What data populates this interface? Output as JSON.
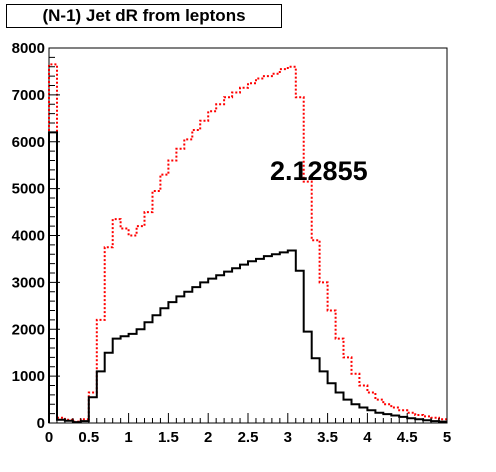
{
  "chart_data": {
    "type": "line",
    "title": "(N-1) Jet dR from leptons",
    "annotation": "2.12855",
    "xlim": [
      0,
      5
    ],
    "ylim": [
      0,
      8000
    ],
    "grid": false,
    "x_ticks": [
      "0",
      "0.5",
      "1",
      "1.5",
      "2",
      "2.5",
      "3",
      "3.5",
      "4",
      "4.5",
      "5"
    ],
    "y_ticks": [
      "0",
      "1000",
      "2000",
      "3000",
      "4000",
      "5000",
      "6000",
      "7000",
      "8000"
    ],
    "bin_width": 0.1,
    "bin_low_edges": [
      0,
      0.1,
      0.2,
      0.3,
      0.4,
      0.5,
      0.6,
      0.7,
      0.8,
      0.9,
      1.0,
      1.1,
      1.2,
      1.3,
      1.4,
      1.5,
      1.6,
      1.7,
      1.8,
      1.9,
      2.0,
      2.1,
      2.2,
      2.3,
      2.4,
      2.5,
      2.6,
      2.7,
      2.8,
      2.9,
      3.0,
      3.1,
      3.2,
      3.3,
      3.4,
      3.5,
      3.6,
      3.7,
      3.8,
      3.9,
      4.0,
      4.1,
      4.2,
      4.3,
      4.4,
      4.5,
      4.6,
      4.7,
      4.8,
      4.9
    ],
    "series": [
      {
        "style": "red-dotted",
        "color": "#ff0000",
        "values": [
          7650,
          110,
          70,
          30,
          80,
          650,
          2200,
          3750,
          4350,
          4150,
          4000,
          4200,
          4500,
          4950,
          5300,
          5600,
          5850,
          6050,
          6250,
          6450,
          6650,
          6800,
          6950,
          7050,
          7150,
          7250,
          7350,
          7400,
          7450,
          7550,
          7600,
          6950,
          5150,
          3900,
          3000,
          2400,
          1800,
          1400,
          1050,
          800,
          650,
          500,
          400,
          330,
          270,
          220,
          170,
          140,
          110,
          80
        ]
      },
      {
        "style": "black-solid",
        "color": "#000000",
        "values": [
          6200,
          70,
          50,
          20,
          40,
          550,
          1100,
          1500,
          1800,
          1850,
          1900,
          2000,
          2150,
          2300,
          2450,
          2580,
          2700,
          2800,
          2900,
          3000,
          3080,
          3150,
          3230,
          3300,
          3380,
          3450,
          3500,
          3560,
          3600,
          3640,
          3680,
          3250,
          1950,
          1380,
          1100,
          850,
          650,
          500,
          400,
          330,
          270,
          220,
          190,
          160,
          130,
          100,
          80,
          60,
          40,
          30
        ]
      }
    ]
  }
}
